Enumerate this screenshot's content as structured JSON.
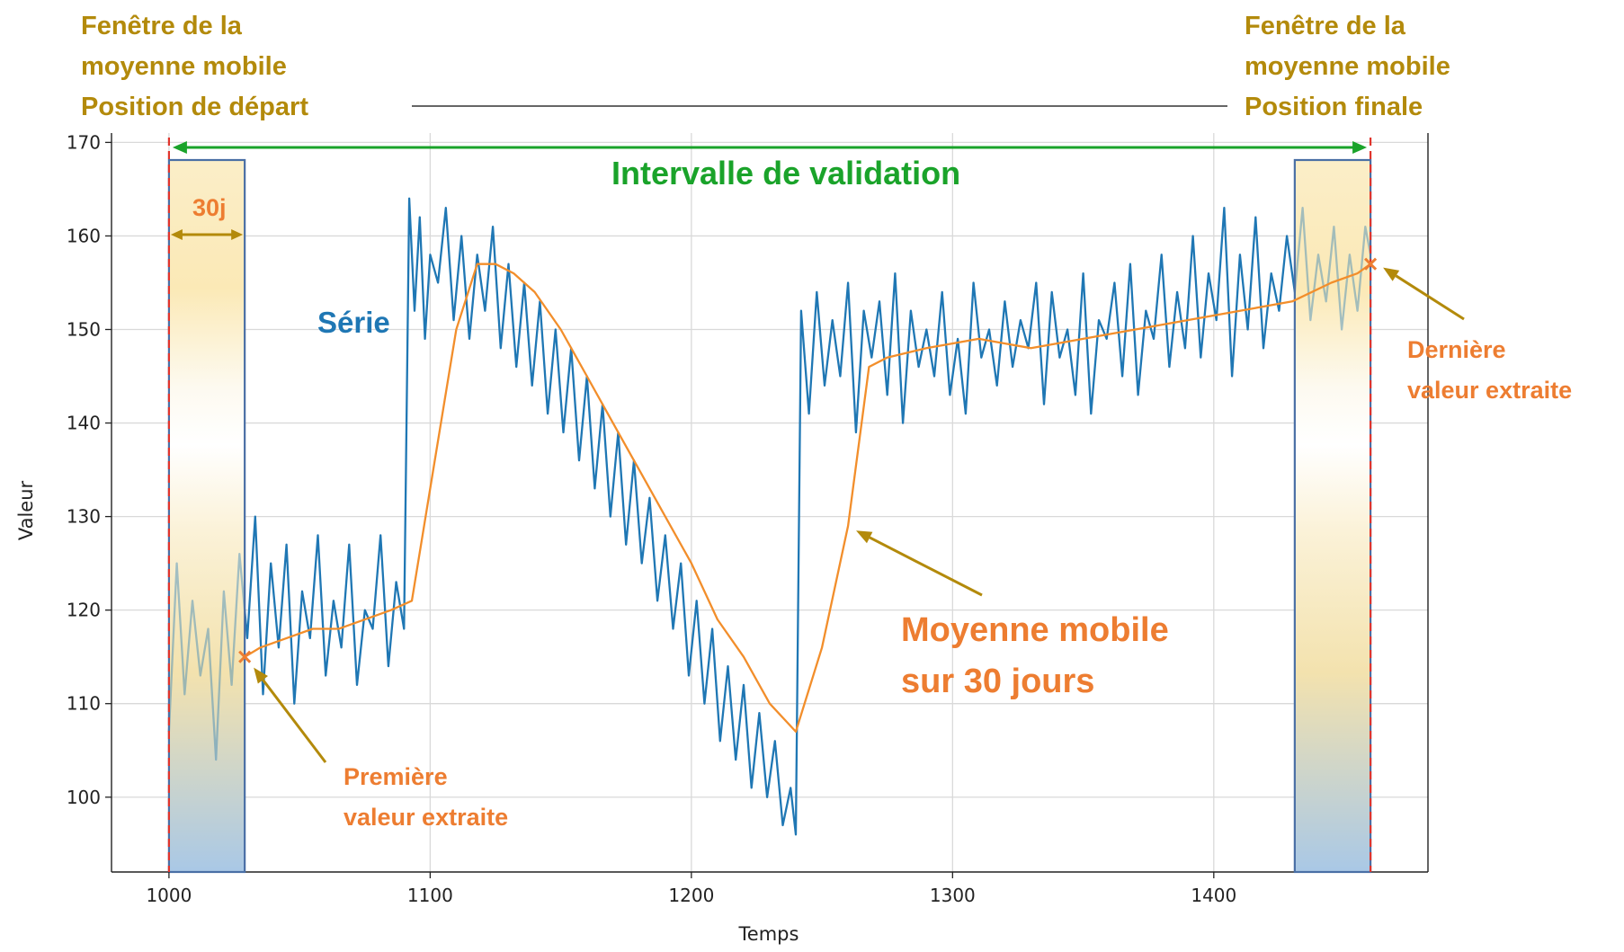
{
  "chart_data": {
    "type": "line",
    "xlabel": "Temps",
    "ylabel": "Valeur",
    "xlim": [
      978,
      1482
    ],
    "ylim": [
      92,
      171
    ],
    "xticks": [
      1000,
      1100,
      1200,
      1300,
      1400
    ],
    "yticks": [
      100,
      110,
      120,
      130,
      140,
      150,
      160,
      170
    ],
    "grid": true,
    "window_days": 30,
    "start_window": [
      1000,
      1029
    ],
    "end_window": [
      1431,
      1460
    ],
    "validation_interval": [
      1000,
      1460
    ],
    "series": [
      {
        "key": "raw",
        "color": "#1f77b4",
        "x": [
          1000,
          1003,
          1006,
          1009,
          1012,
          1015,
          1018,
          1021,
          1024,
          1027,
          1030,
          1033,
          1036,
          1039,
          1042,
          1045,
          1048,
          1051,
          1054,
          1057,
          1060,
          1063,
          1066,
          1069,
          1072,
          1075,
          1078,
          1081,
          1084,
          1087,
          1090,
          1092,
          1094,
          1096,
          1098,
          1100,
          1103,
          1106,
          1109,
          1112,
          1115,
          1118,
          1121,
          1124,
          1127,
          1130,
          1133,
          1136,
          1139,
          1142,
          1145,
          1148,
          1151,
          1154,
          1157,
          1160,
          1163,
          1166,
          1169,
          1172,
          1175,
          1178,
          1181,
          1184,
          1187,
          1190,
          1193,
          1196,
          1199,
          1202,
          1205,
          1208,
          1211,
          1214,
          1217,
          1220,
          1223,
          1226,
          1229,
          1232,
          1235,
          1238,
          1240,
          1242,
          1245,
          1248,
          1251,
          1254,
          1257,
          1260,
          1263,
          1266,
          1269,
          1272,
          1275,
          1278,
          1281,
          1284,
          1287,
          1290,
          1293,
          1296,
          1299,
          1302,
          1305,
          1308,
          1311,
          1314,
          1317,
          1320,
          1323,
          1326,
          1329,
          1332,
          1335,
          1338,
          1341,
          1344,
          1347,
          1350,
          1353,
          1356,
          1359,
          1362,
          1365,
          1368,
          1371,
          1374,
          1377,
          1380,
          1383,
          1386,
          1389,
          1392,
          1395,
          1398,
          1401,
          1404,
          1407,
          1410,
          1413,
          1416,
          1419,
          1422,
          1425,
          1428,
          1431,
          1434,
          1437,
          1440,
          1443,
          1446,
          1449,
          1452,
          1455,
          1458,
          1460
        ],
        "y": [
          107,
          125,
          111,
          121,
          113,
          118,
          104,
          122,
          112,
          126,
          117,
          130,
          111,
          125,
          116,
          127,
          110,
          122,
          117,
          128,
          113,
          121,
          116,
          127,
          112,
          120,
          118,
          128,
          114,
          123,
          118,
          164,
          152,
          162,
          149,
          158,
          155,
          163,
          151,
          160,
          149,
          158,
          152,
          161,
          148,
          157,
          146,
          155,
          144,
          153,
          141,
          150,
          139,
          148,
          136,
          145,
          133,
          142,
          130,
          139,
          127,
          136,
          125,
          132,
          121,
          128,
          118,
          125,
          113,
          121,
          110,
          118,
          106,
          114,
          104,
          112,
          101,
          109,
          100,
          106,
          97,
          101,
          96,
          152,
          141,
          154,
          144,
          151,
          145,
          155,
          139,
          152,
          147,
          153,
          143,
          156,
          140,
          152,
          146,
          150,
          145,
          154,
          143,
          149,
          141,
          155,
          147,
          150,
          144,
          153,
          146,
          151,
          148,
          155,
          142,
          154,
          147,
          150,
          143,
          156,
          141,
          151,
          149,
          155,
          145,
          157,
          143,
          152,
          149,
          158,
          146,
          154,
          148,
          160,
          147,
          156,
          151,
          163,
          145,
          158,
          150,
          162,
          148,
          156,
          152,
          160,
          154,
          163,
          151,
          158,
          153,
          161,
          150,
          158,
          152,
          161,
          158
        ],
        "line_width": 2.3
      },
      {
        "key": "moving_average",
        "color": "#f28e2b",
        "x": [
          1029,
          1035,
          1045,
          1055,
          1065,
          1075,
          1085,
          1093,
          1100,
          1110,
          1118,
          1125,
          1132,
          1140,
          1150,
          1160,
          1170,
          1180,
          1190,
          1200,
          1210,
          1220,
          1230,
          1240,
          1250,
          1260,
          1268,
          1275,
          1290,
          1310,
          1330,
          1350,
          1370,
          1390,
          1410,
          1430,
          1445,
          1455,
          1460
        ],
        "y": [
          115,
          116,
          117,
          118,
          118,
          119,
          120,
          121,
          133,
          150,
          157,
          157,
          156,
          154,
          150,
          145,
          140,
          135,
          130,
          125,
          119,
          115,
          110,
          107,
          116,
          129,
          146,
          147,
          148,
          149,
          148,
          149,
          150,
          151,
          152,
          153,
          155,
          156,
          157
        ],
        "line_width": 2.3
      }
    ],
    "annotations": {
      "first_point": {
        "x": 1029,
        "y": 115
      },
      "last_point": {
        "x": 1460,
        "y": 157
      }
    }
  },
  "labels": {
    "start_window": [
      "Fenêtre de la",
      "moyenne mobile",
      "Position de départ"
    ],
    "end_window": [
      "Fenêtre de la",
      "moyenne mobile",
      "Position finale"
    ],
    "validation": "Intervalle de validation",
    "window_size": "30j",
    "series": "Série",
    "moving_average": [
      "Moyenne mobile",
      "sur 30 jours"
    ],
    "first_value": [
      "Première",
      "valeur extraite"
    ],
    "last_value": [
      "Dernière",
      "valeur extraite"
    ],
    "marker": "x"
  },
  "colors": {
    "gold": "#b38a0b",
    "orange": "#ed7d31",
    "green": "#1aa32a",
    "blue": "#1f77b4",
    "red_dash": "#e0342c",
    "window_border": "#4a6fa5"
  }
}
